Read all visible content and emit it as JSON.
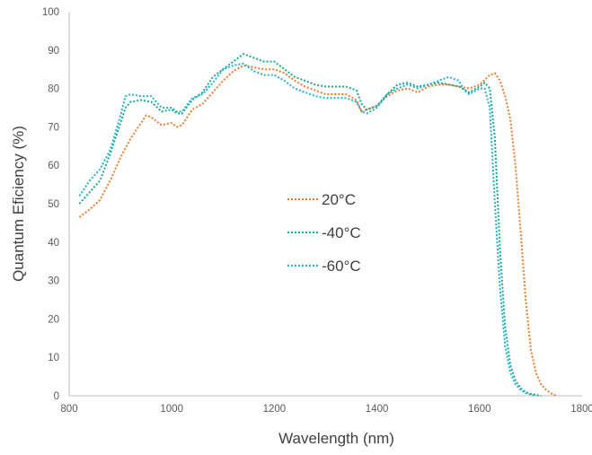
{
  "chart_data": {
    "type": "line",
    "title": "",
    "xlabel": "Wavelength (nm)",
    "ylabel": "Quantum Eficiency (%)",
    "xlim": [
      800,
      1800
    ],
    "ylim": [
      0,
      100
    ],
    "x_ticks": [
      800,
      1000,
      1200,
      1400,
      1600,
      1800
    ],
    "y_ticks": [
      0,
      10,
      20,
      30,
      40,
      50,
      60,
      70,
      80,
      90,
      100
    ],
    "grid": false,
    "legend_position": "center",
    "series": [
      {
        "name": "20°C",
        "color": "#ed7d31",
        "points": [
          [
            820,
            46.5
          ],
          [
            840,
            48.5
          ],
          [
            860,
            51
          ],
          [
            880,
            56
          ],
          [
            900,
            62
          ],
          [
            920,
            67
          ],
          [
            940,
            71
          ],
          [
            950,
            73
          ],
          [
            960,
            72.5
          ],
          [
            980,
            70.5
          ],
          [
            1000,
            71
          ],
          [
            1010,
            70
          ],
          [
            1020,
            70.5
          ],
          [
            1040,
            74.5
          ],
          [
            1060,
            76
          ],
          [
            1080,
            79
          ],
          [
            1100,
            82
          ],
          [
            1120,
            84.5
          ],
          [
            1140,
            86
          ],
          [
            1160,
            85.5
          ],
          [
            1180,
            85
          ],
          [
            1200,
            85
          ],
          [
            1220,
            84
          ],
          [
            1240,
            82
          ],
          [
            1260,
            80.5
          ],
          [
            1280,
            79.5
          ],
          [
            1300,
            78.5
          ],
          [
            1320,
            78.5
          ],
          [
            1340,
            78.5
          ],
          [
            1360,
            77
          ],
          [
            1370,
            74
          ],
          [
            1380,
            74.5
          ],
          [
            1400,
            75.5
          ],
          [
            1420,
            78
          ],
          [
            1440,
            79.5
          ],
          [
            1460,
            80
          ],
          [
            1480,
            79
          ],
          [
            1500,
            80.5
          ],
          [
            1520,
            81
          ],
          [
            1540,
            81
          ],
          [
            1560,
            80.5
          ],
          [
            1580,
            80
          ],
          [
            1600,
            81
          ],
          [
            1620,
            83.5
          ],
          [
            1630,
            84
          ],
          [
            1640,
            82
          ],
          [
            1650,
            78
          ],
          [
            1660,
            72
          ],
          [
            1670,
            60
          ],
          [
            1680,
            43
          ],
          [
            1690,
            25
          ],
          [
            1700,
            12
          ],
          [
            1710,
            6
          ],
          [
            1720,
            3
          ],
          [
            1730,
            1.5
          ],
          [
            1740,
            0.6
          ],
          [
            1750,
            0
          ]
        ]
      },
      {
        "name": "-40°C",
        "color": "#1ea88a",
        "points": [
          [
            820,
            50
          ],
          [
            840,
            53
          ],
          [
            860,
            56
          ],
          [
            880,
            63
          ],
          [
            900,
            71
          ],
          [
            910,
            75
          ],
          [
            920,
            76.5
          ],
          [
            940,
            77
          ],
          [
            960,
            76.5
          ],
          [
            980,
            74
          ],
          [
            1000,
            74.5
          ],
          [
            1010,
            73.5
          ],
          [
            1020,
            73.5
          ],
          [
            1040,
            77
          ],
          [
            1060,
            79
          ],
          [
            1080,
            83
          ],
          [
            1100,
            85
          ],
          [
            1120,
            87
          ],
          [
            1140,
            89
          ],
          [
            1160,
            88
          ],
          [
            1180,
            87
          ],
          [
            1200,
            87
          ],
          [
            1220,
            85
          ],
          [
            1240,
            83
          ],
          [
            1260,
            82
          ],
          [
            1280,
            81
          ],
          [
            1300,
            80.5
          ],
          [
            1320,
            80.5
          ],
          [
            1340,
            80.5
          ],
          [
            1360,
            79.5
          ],
          [
            1370,
            76
          ],
          [
            1380,
            74.5
          ],
          [
            1400,
            75.5
          ],
          [
            1420,
            78.5
          ],
          [
            1440,
            81
          ],
          [
            1460,
            81.5
          ],
          [
            1480,
            80.5
          ],
          [
            1500,
            81
          ],
          [
            1520,
            81.5
          ],
          [
            1540,
            81
          ],
          [
            1560,
            80.5
          ],
          [
            1580,
            79
          ],
          [
            1600,
            80.5
          ],
          [
            1610,
            81.5
          ],
          [
            1620,
            80
          ],
          [
            1630,
            67
          ],
          [
            1640,
            38
          ],
          [
            1650,
            18
          ],
          [
            1660,
            8
          ],
          [
            1670,
            4
          ],
          [
            1680,
            2
          ],
          [
            1690,
            1
          ],
          [
            1700,
            0.5
          ],
          [
            1710,
            0.2
          ],
          [
            1720,
            0
          ]
        ]
      },
      {
        "name": "-60°C",
        "color": "#2ab0d8",
        "points": [
          [
            820,
            52
          ],
          [
            840,
            56
          ],
          [
            860,
            59
          ],
          [
            880,
            64
          ],
          [
            900,
            73
          ],
          [
            910,
            78
          ],
          [
            920,
            78.5
          ],
          [
            940,
            78
          ],
          [
            960,
            78
          ],
          [
            980,
            75
          ],
          [
            1000,
            75
          ],
          [
            1010,
            74
          ],
          [
            1020,
            74
          ],
          [
            1040,
            77.5
          ],
          [
            1060,
            78.5
          ],
          [
            1080,
            81.5
          ],
          [
            1100,
            85
          ],
          [
            1120,
            86
          ],
          [
            1140,
            86.5
          ],
          [
            1160,
            84.5
          ],
          [
            1180,
            83.5
          ],
          [
            1200,
            83.5
          ],
          [
            1220,
            82
          ],
          [
            1240,
            80
          ],
          [
            1260,
            79
          ],
          [
            1280,
            78
          ],
          [
            1300,
            77.5
          ],
          [
            1320,
            77.5
          ],
          [
            1340,
            77.5
          ],
          [
            1360,
            76.5
          ],
          [
            1370,
            74
          ],
          [
            1380,
            73.5
          ],
          [
            1400,
            75
          ],
          [
            1420,
            78.5
          ],
          [
            1440,
            80
          ],
          [
            1460,
            81
          ],
          [
            1480,
            80
          ],
          [
            1500,
            81
          ],
          [
            1520,
            82
          ],
          [
            1540,
            83
          ],
          [
            1560,
            82
          ],
          [
            1570,
            79.5
          ],
          [
            1580,
            78.5
          ],
          [
            1600,
            80
          ],
          [
            1610,
            80
          ],
          [
            1620,
            75
          ],
          [
            1630,
            50
          ],
          [
            1640,
            28
          ],
          [
            1650,
            13
          ],
          [
            1660,
            6
          ],
          [
            1670,
            3
          ],
          [
            1680,
            1.5
          ],
          [
            1690,
            0.7
          ],
          [
            1700,
            0.3
          ],
          [
            1710,
            0
          ]
        ]
      }
    ]
  }
}
